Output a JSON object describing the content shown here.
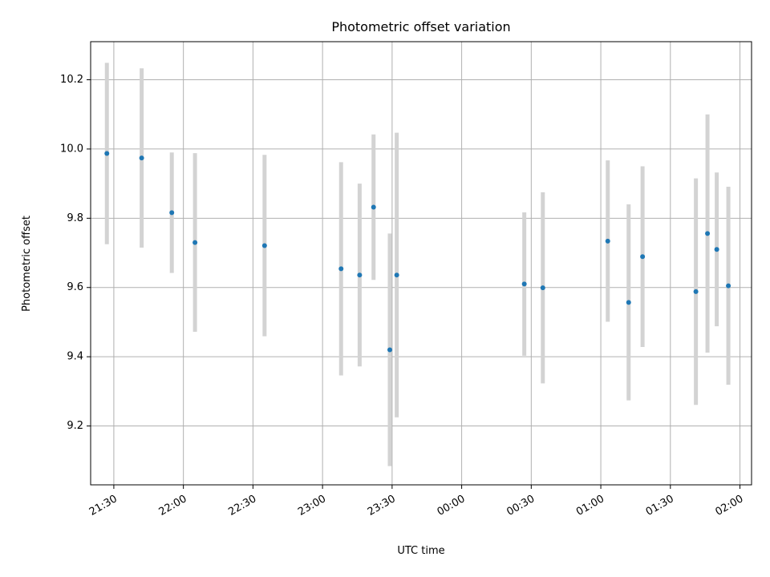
{
  "chart_data": {
    "type": "scatter",
    "title": "Photometric offset variation",
    "xlabel": "UTC time",
    "ylabel": "Photometric offset",
    "x_ticks": [
      "21:30",
      "22:00",
      "22:30",
      "23:00",
      "23:30",
      "00:00",
      "00:30",
      "01:00",
      "01:30",
      "02:00"
    ],
    "y_ticks": [
      "9.2",
      "9.4",
      "9.6",
      "9.8",
      "10.0",
      "10.2"
    ],
    "xlim": [
      "21:20",
      "02:05"
    ],
    "ylim": [
      9.03,
      10.31
    ],
    "grid": true,
    "marker_color": "#1f77b4",
    "errorbar_color": "#d3d3d3",
    "points": [
      {
        "time": "21:27",
        "y": 9.987,
        "err": 0.262
      },
      {
        "time": "21:42",
        "y": 9.974,
        "err": 0.259
      },
      {
        "time": "21:55",
        "y": 9.816,
        "err": 0.174
      },
      {
        "time": "22:05",
        "y": 9.73,
        "err": 0.258
      },
      {
        "time": "22:35",
        "y": 9.721,
        "err": 0.262
      },
      {
        "time": "23:08",
        "y": 9.654,
        "err": 0.308
      },
      {
        "time": "23:16",
        "y": 9.636,
        "err": 0.264
      },
      {
        "time": "23:22",
        "y": 9.832,
        "err": 0.21
      },
      {
        "time": "23:29",
        "y": 9.42,
        "err": 0.336
      },
      {
        "time": "23:32",
        "y": 9.636,
        "err": 0.411
      },
      {
        "time": "00:27",
        "y": 9.61,
        "err": 0.207
      },
      {
        "time": "00:35",
        "y": 9.599,
        "err": 0.276
      },
      {
        "time": "01:03",
        "y": 9.734,
        "err": 0.233
      },
      {
        "time": "01:12",
        "y": 9.557,
        "err": 0.283
      },
      {
        "time": "01:18",
        "y": 9.689,
        "err": 0.261
      },
      {
        "time": "01:41",
        "y": 9.588,
        "err": 0.327
      },
      {
        "time": "01:46",
        "y": 9.756,
        "err": 0.344
      },
      {
        "time": "01:50",
        "y": 9.71,
        "err": 0.222
      },
      {
        "time": "01:55",
        "y": 9.605,
        "err": 0.286
      }
    ]
  }
}
